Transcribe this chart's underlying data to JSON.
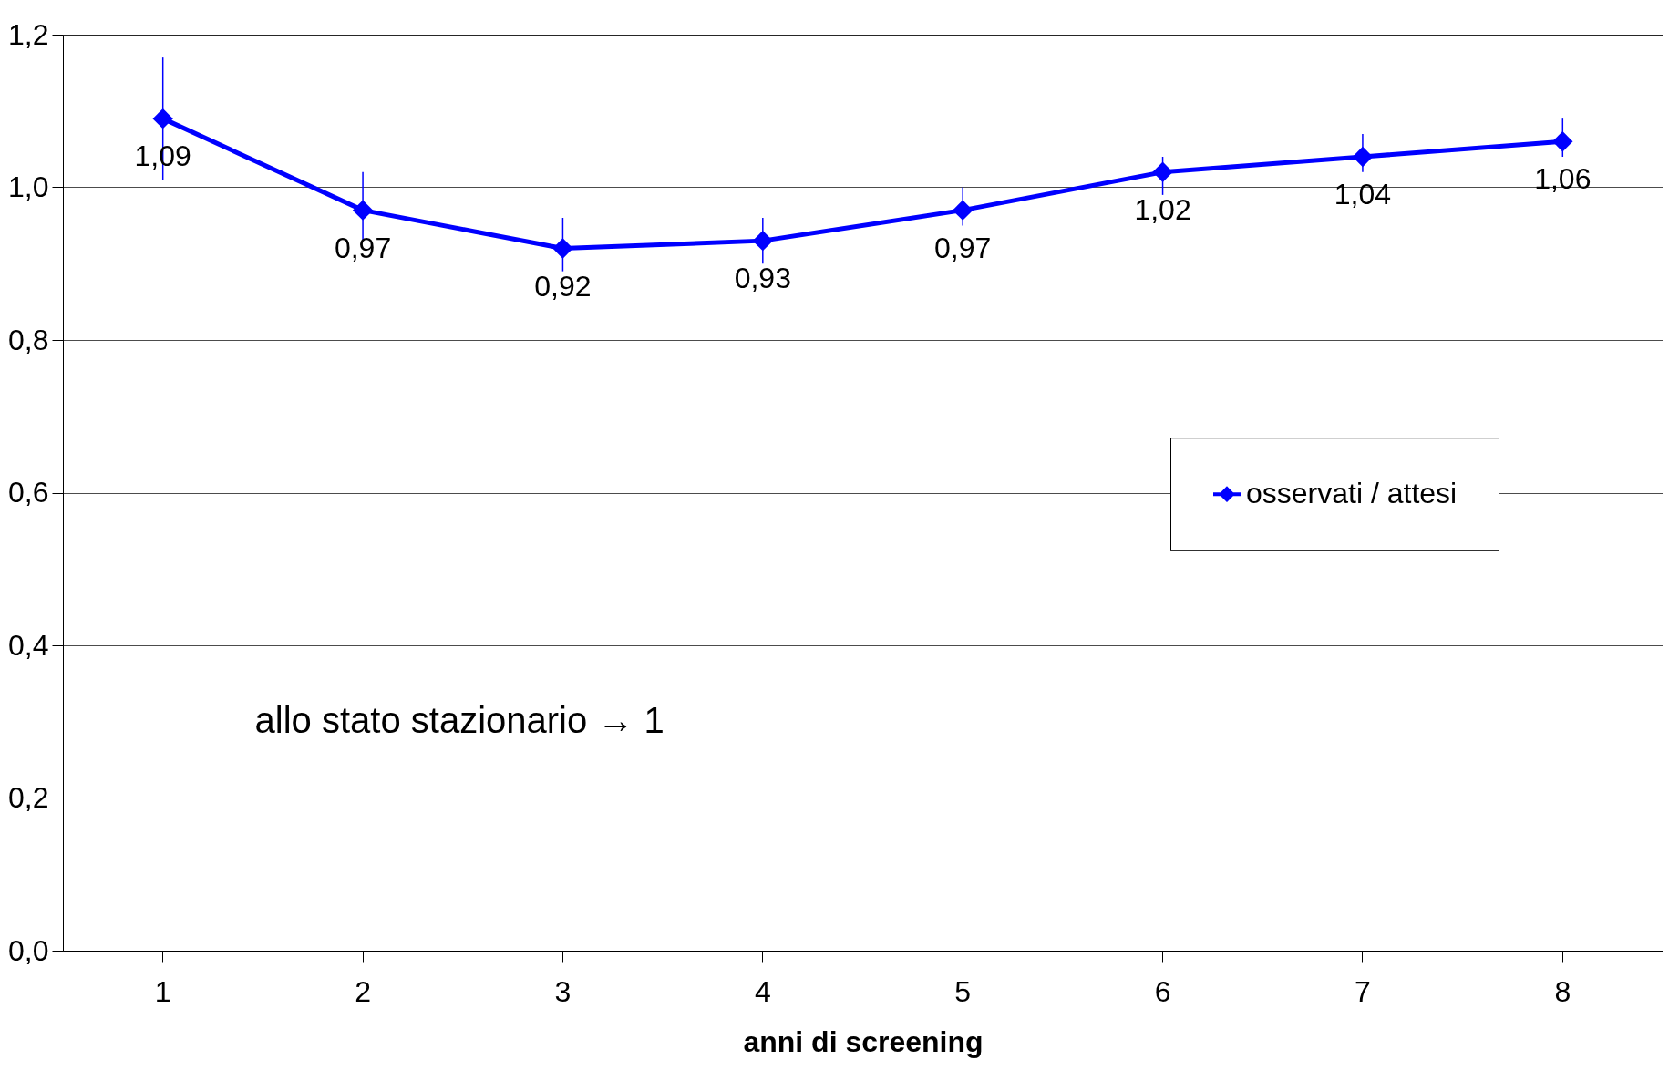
{
  "chart_data": {
    "type": "line",
    "xlabel": "anni di screening",
    "categories": [
      "1",
      "2",
      "3",
      "4",
      "5",
      "6",
      "7",
      "8"
    ],
    "series": [
      {
        "name": "osservati / attesi",
        "color": "#0000ff",
        "values": [
          1.09,
          0.97,
          0.92,
          0.93,
          0.97,
          1.02,
          1.04,
          1.06
        ],
        "errors": [
          [
            1.01,
            1.17
          ],
          [
            0.93,
            1.02
          ],
          [
            0.89,
            0.96
          ],
          [
            0.9,
            0.96
          ],
          [
            0.95,
            1.0
          ],
          [
            0.99,
            1.04
          ],
          [
            1.02,
            1.07
          ],
          [
            1.04,
            1.09
          ]
        ],
        "value_labels": [
          "1,09",
          "0,97",
          "0,92",
          "0,93",
          "0,97",
          "1,02",
          "1,04",
          "1,06"
        ]
      }
    ],
    "ylim": [
      0,
      1.2
    ],
    "yticks": [
      {
        "value": 0,
        "label": "0,0"
      },
      {
        "value": 0.2,
        "label": "0,2"
      },
      {
        "value": 0.4,
        "label": "0,4"
      },
      {
        "value": 0.6,
        "label": "0,6"
      },
      {
        "value": 0.8,
        "label": "0,8"
      },
      {
        "value": 1.0,
        "label": "1,0"
      },
      {
        "value": 1.2,
        "label": "1,2"
      }
    ],
    "grid": "y",
    "legend": "right",
    "marker": "diamond",
    "line_style": "solid",
    "annotations": [
      "allo stato stazionario → 1"
    ]
  }
}
